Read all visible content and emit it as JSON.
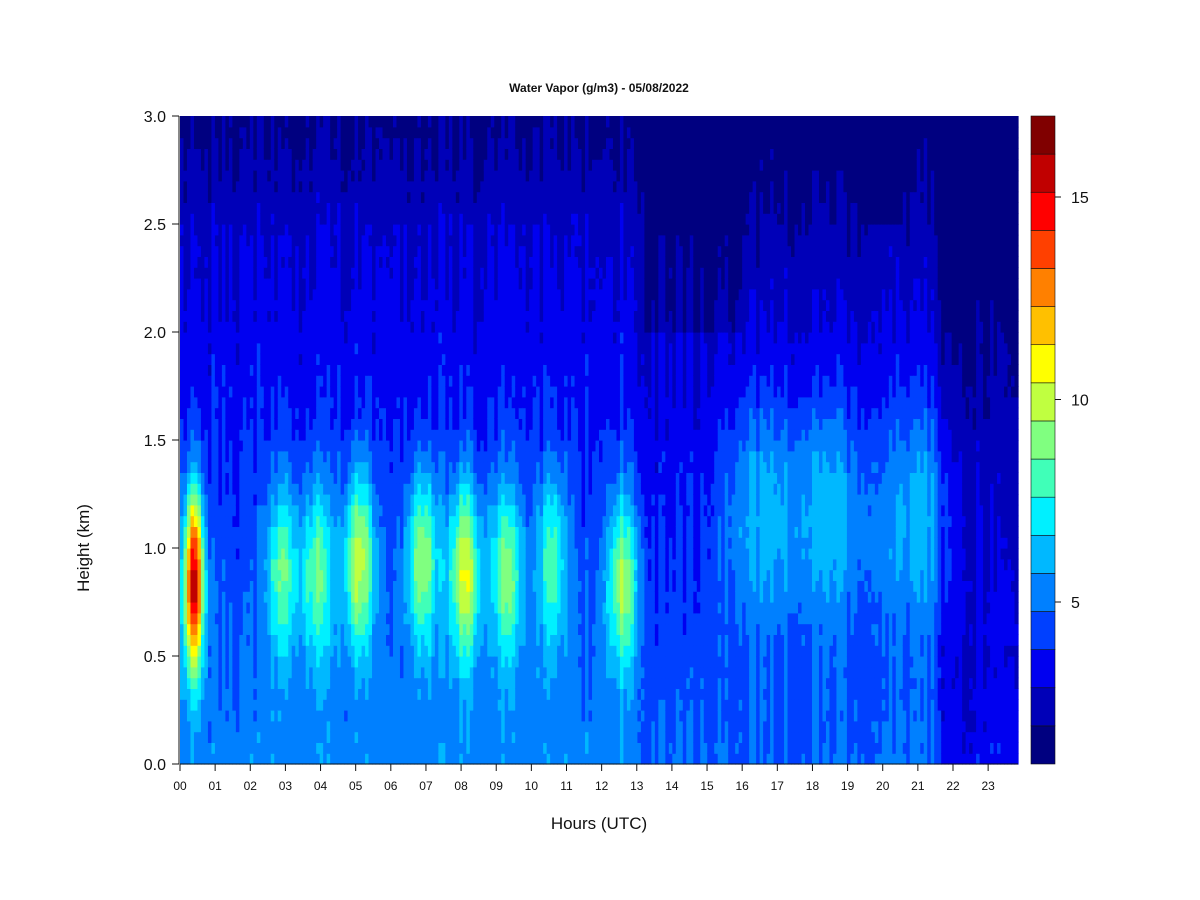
{
  "chart_data": {
    "type": "heatmap",
    "title": "Water Vapor (g/m3) - 05/08/2022",
    "xlabel": "Hours (UTC)",
    "ylabel": "Height (km)",
    "x_ticks": [
      "00",
      "01",
      "02",
      "03",
      "04",
      "05",
      "06",
      "07",
      "08",
      "09",
      "10",
      "11",
      "12",
      "13",
      "14",
      "15",
      "16",
      "17",
      "18",
      "19",
      "20",
      "21",
      "22",
      "23"
    ],
    "xlim": [
      0,
      23.85
    ],
    "ylim": [
      0,
      3.0
    ],
    "y_ticks": [
      "0.0",
      "0.5",
      "1.0",
      "1.5",
      "2.0",
      "2.5",
      "3.0"
    ],
    "y_tick_values": [
      0,
      0.5,
      1.0,
      1.5,
      2.0,
      2.5,
      3.0
    ],
    "colorbar": {
      "range": [
        1,
        17
      ],
      "ticks": [
        "5",
        "10",
        "15"
      ],
      "tick_values": [
        5,
        10,
        15
      ],
      "levels": [
        1,
        2,
        3,
        4,
        5,
        6,
        7,
        8,
        9,
        10,
        11,
        12,
        13,
        14,
        15,
        16,
        17
      ],
      "colors": [
        "#000080",
        "#0000b8",
        "#0000f0",
        "#0040ff",
        "#0080ff",
        "#00b8ff",
        "#00f0ff",
        "#40ffb8",
        "#80ff80",
        "#c0ff40",
        "#ffff00",
        "#ffc000",
        "#ff8000",
        "#ff4000",
        "#ff0000",
        "#c00000",
        "#800000"
      ]
    },
    "features": [
      {
        "hour": 0.4,
        "height": 0.85,
        "peak": 16.5
      },
      {
        "hour": 2.9,
        "height": 0.9,
        "peak": 9.0
      },
      {
        "hour": 3.9,
        "height": 0.9,
        "peak": 9.0
      },
      {
        "hour": 5.1,
        "height": 0.95,
        "peak": 10.5
      },
      {
        "hour": 6.9,
        "height": 0.95,
        "peak": 10.0
      },
      {
        "hour": 8.1,
        "height": 0.9,
        "peak": 11.0
      },
      {
        "hour": 9.3,
        "height": 0.9,
        "peak": 9.5
      },
      {
        "hour": 10.6,
        "height": 0.95,
        "peak": 8.5
      },
      {
        "hour": 12.6,
        "height": 0.85,
        "peak": 10.0
      },
      {
        "hour": 16.5,
        "height": 1.2,
        "peak": 7.0
      },
      {
        "hour": 18.5,
        "height": 1.2,
        "peak": 7.0
      },
      {
        "hour": 21.0,
        "height": 1.2,
        "peak": 6.8
      }
    ]
  }
}
